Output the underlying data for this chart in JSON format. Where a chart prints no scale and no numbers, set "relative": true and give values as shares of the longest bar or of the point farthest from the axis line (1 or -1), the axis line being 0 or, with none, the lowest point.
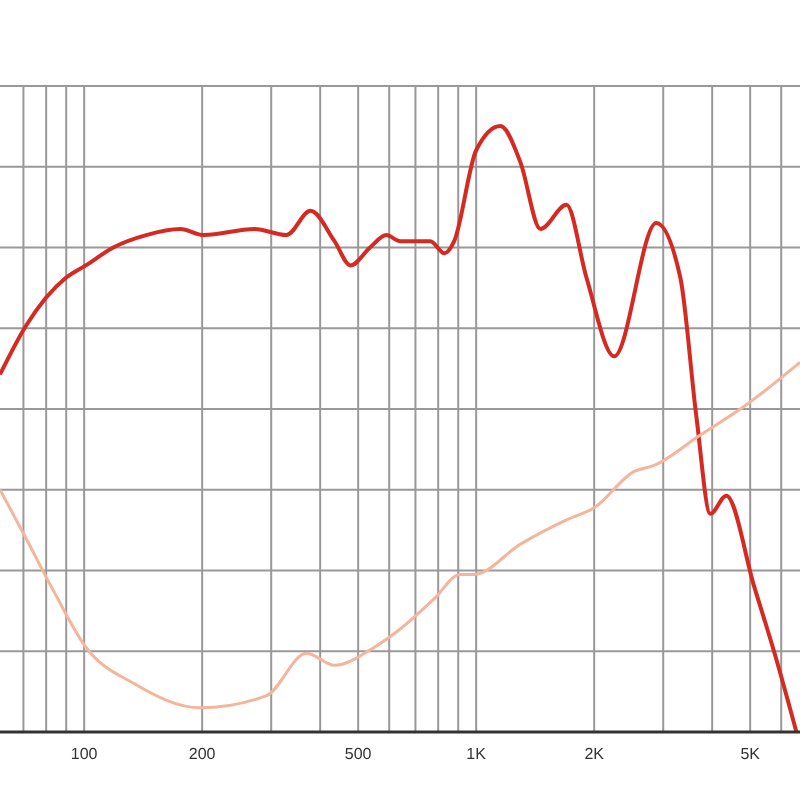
{
  "chart_data": {
    "type": "line",
    "relative": true,
    "log": "x",
    "grid": true,
    "legend": false,
    "marker": "none",
    "line_style": "solid",
    "tick_labels": "x",
    "xlim": [
      61,
      6700
    ],
    "xticks": [
      {
        "value": 70,
        "label": null
      },
      {
        "value": 80,
        "label": null
      },
      {
        "value": 90,
        "label": null
      },
      {
        "value": 100,
        "label": "100"
      },
      {
        "value": 200,
        "label": "200"
      },
      {
        "value": 300,
        "label": null
      },
      {
        "value": 400,
        "label": null
      },
      {
        "value": 500,
        "label": "500"
      },
      {
        "value": 600,
        "label": null
      },
      {
        "value": 700,
        "label": null
      },
      {
        "value": 800,
        "label": null
      },
      {
        "value": 900,
        "label": null
      },
      {
        "value": 1000,
        "label": "1K"
      },
      {
        "value": 2000,
        "label": "2K"
      },
      {
        "value": 3000,
        "label": null
      },
      {
        "value": 4000,
        "label": null
      },
      {
        "value": 5000,
        "label": "5K"
      },
      {
        "value": 6000,
        "label": null
      }
    ],
    "series": [
      {
        "color": "#d42a22",
        "x": [
          61,
          71,
          90,
          101,
          119,
          144,
          176,
          202,
          272,
          328,
          378,
          435,
          478,
          537,
          590,
          640,
          764,
          830,
          879,
          1000,
          1153,
          1297,
          1459,
          1700,
          1911,
          2250,
          2879,
          3317,
          3646,
          3957,
          4345,
          5120,
          5830,
          6560
        ],
        "values": [
          0.59,
          0.67,
          0.75,
          0.77,
          0.8,
          0.82,
          0.83,
          0.82,
          0.83,
          0.82,
          0.86,
          0.81,
          0.77,
          0.8,
          0.82,
          0.81,
          0.81,
          0.79,
          0.81,
          0.96,
          1,
          0.94,
          0.83,
          0.87,
          0.75,
          0.62,
          0.84,
          0.75,
          0.52,
          0.36,
          0.39,
          0.24,
          0.12,
          0
        ]
      },
      {
        "color": "#f5b49c",
        "x": [
          61,
          71,
          84,
          101,
          134,
          198,
          292,
          369,
          435,
          550,
          640,
          782,
          910,
          988,
          1297,
          1700,
          2000,
          2530,
          2845,
          3730,
          4890,
          6700
        ],
        "values": [
          0.4,
          0.32,
          0.23,
          0.14,
          0.08,
          0.04,
          0.06,
          0.13,
          0.11,
          0.14,
          0.17,
          0.22,
          0.26,
          0.26,
          0.31,
          0.35,
          0.37,
          0.43,
          0.44,
          0.49,
          0.54,
          0.61
        ]
      }
    ]
  }
}
